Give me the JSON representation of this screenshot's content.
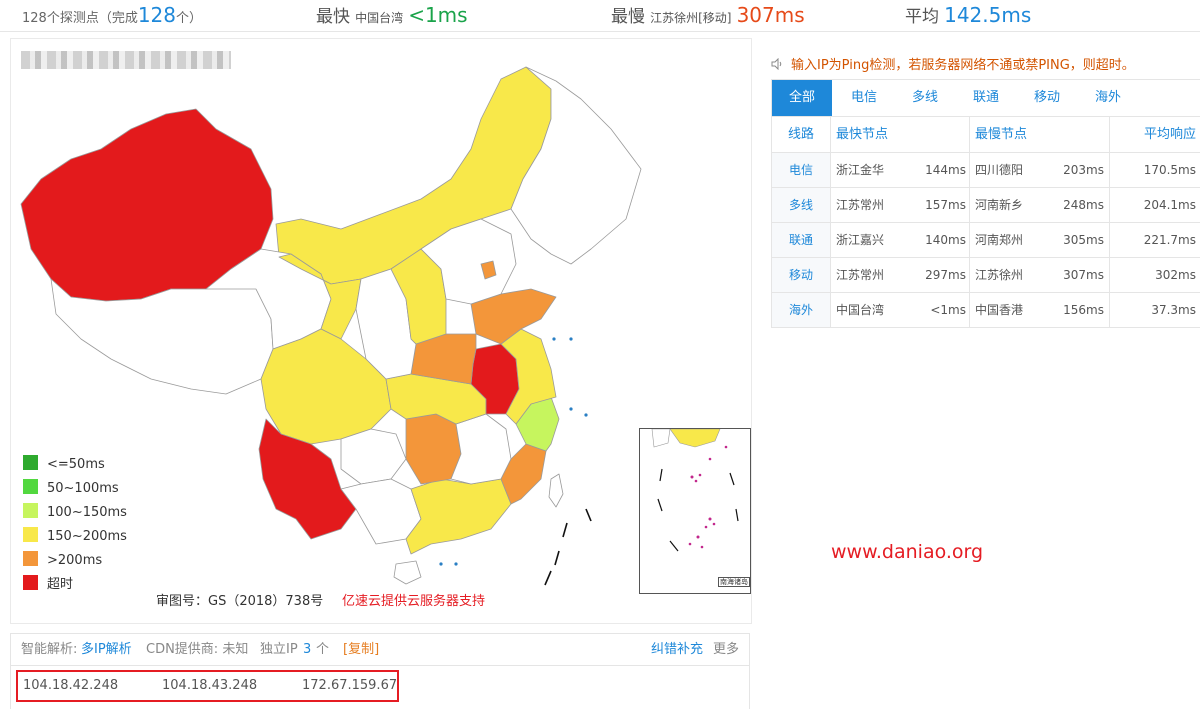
{
  "topbar": {
    "points_prefix": "128个探测点（完成",
    "points_count": "128",
    "points_suffix": "个）",
    "fastest_label": "最快",
    "fastest_location": "中国台湾",
    "fastest_value": "<1ms",
    "slowest_label": "最慢",
    "slowest_location": "江苏徐州[移动]",
    "slowest_value": "307ms",
    "average_label": "平均",
    "average_value": "142.5ms"
  },
  "legend": [
    {
      "label": "<=50ms",
      "color": "#2eaa2e"
    },
    {
      "label": "50~100ms",
      "color": "#52d83f"
    },
    {
      "label": "100~150ms",
      "color": "#c6f55e"
    },
    {
      "label": "150~200ms",
      "color": "#f8e84a"
    },
    {
      "label": ">200ms",
      "color": "#f3963a"
    },
    {
      "label": "超时",
      "color": "#e31a1c"
    }
  ],
  "map": {
    "review_number": "审图号：GS（2018）738号",
    "sponsor": "亿速云提供云服务器支持",
    "inset_label": "南海诸岛",
    "colors": {
      "timeout": "#e31a1c",
      "slow": "#f3963a",
      "mid": "#f8e84a",
      "good": "#c6f55e",
      "none": "#ffffff"
    }
  },
  "notice": "输入IP为Ping检测，若服务器网络不通或禁PING，则超时。",
  "tabs": [
    {
      "label": "全部",
      "active": true
    },
    {
      "label": "电信"
    },
    {
      "label": "多线"
    },
    {
      "label": "联通"
    },
    {
      "label": "移动"
    },
    {
      "label": "海外"
    }
  ],
  "table": {
    "headers": {
      "type": "线路",
      "fastest": "最快节点",
      "slowest": "最慢节点",
      "avg": "平均响应"
    },
    "rows": [
      {
        "type": "电信",
        "fast_node": "浙江金华",
        "fast_ms": "144ms",
        "slow_node": "四川德阳",
        "slow_ms": "203ms",
        "avg": "170.5ms"
      },
      {
        "type": "多线",
        "fast_node": "江苏常州",
        "fast_ms": "157ms",
        "slow_node": "河南新乡",
        "slow_ms": "248ms",
        "avg": "204.1ms"
      },
      {
        "type": "联通",
        "fast_node": "浙江嘉兴",
        "fast_ms": "140ms",
        "slow_node": "河南郑州",
        "slow_ms": "305ms",
        "avg": "221.7ms"
      },
      {
        "type": "移动",
        "fast_node": "江苏常州",
        "fast_ms": "297ms",
        "slow_node": "江苏徐州",
        "slow_ms": "307ms",
        "avg": "302ms"
      },
      {
        "type": "海外",
        "fast_node": "中国台湾",
        "fast_ms": "<1ms",
        "slow_node": "中国香港",
        "slow_ms": "156ms",
        "avg": "37.3ms"
      }
    ]
  },
  "watermark": "www.daniao.org",
  "info": {
    "smart_label": "智能解析:",
    "smart_value": "多IP解析",
    "cdn": "CDN提供商: 未知",
    "ip_label": "独立IP",
    "ip_count": "3",
    "ip_unit": "个",
    "copy": "[复制]",
    "correct": "纠错补充",
    "more": "更多",
    "ips": [
      "104.18.42.248",
      "104.18.43.248",
      "172.67.159.67"
    ]
  }
}
